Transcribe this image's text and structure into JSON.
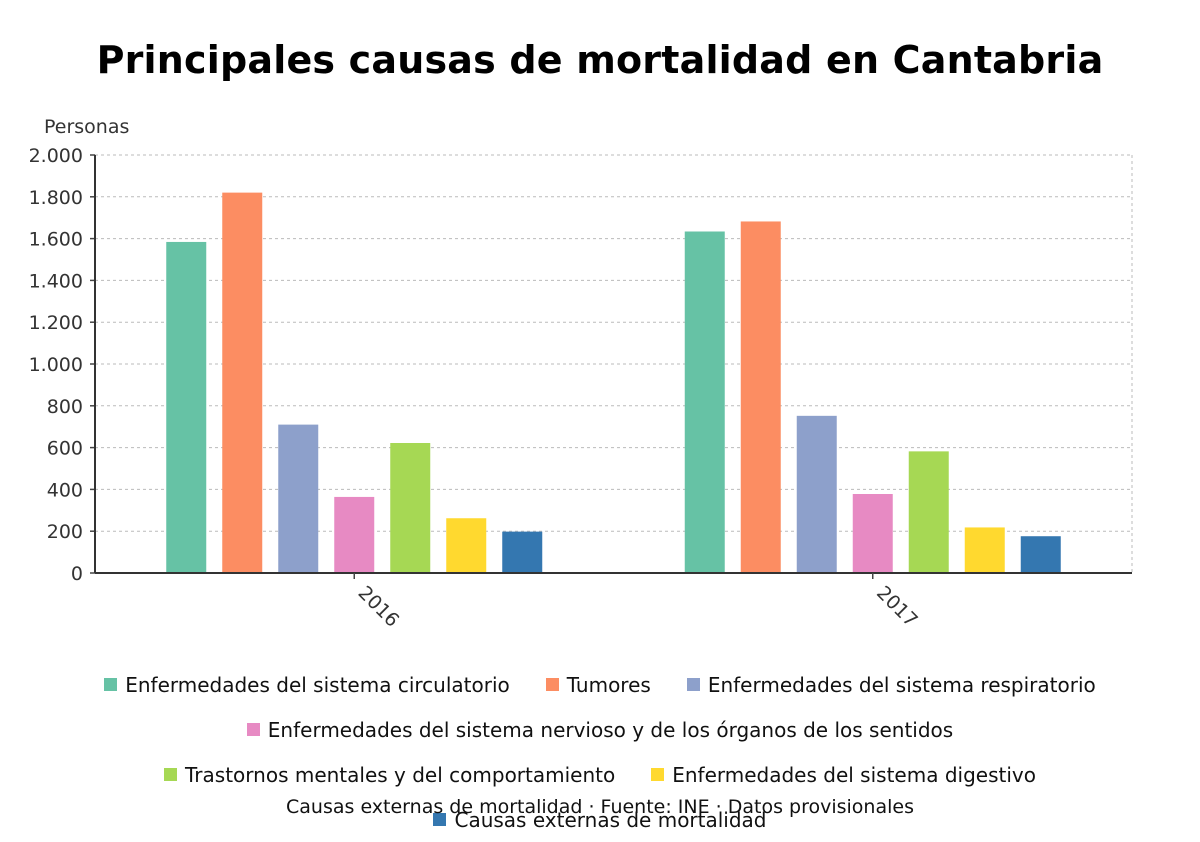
{
  "chart_data": {
    "type": "bar",
    "title": "Principales causas de mortalidad en Cantabria",
    "ylabel": "Personas",
    "xlabel": "",
    "ylim": [
      0,
      2000
    ],
    "yticks": [
      0,
      200,
      400,
      600,
      800,
      1000,
      1200,
      1400,
      1600,
      1800,
      2000
    ],
    "ytick_labels": [
      "0",
      "200",
      "400",
      "600",
      "800",
      "1.000",
      "1.200",
      "1.400",
      "1.600",
      "1.800",
      "2.000"
    ],
    "categories": [
      "2016",
      "2017"
    ],
    "series": [
      {
        "name": "Enfermedades del sistema circulatorio",
        "color": "#66c2a5",
        "values": [
          1584,
          1634
        ]
      },
      {
        "name": "Tumores",
        "color": "#fc8d62",
        "values": [
          1820,
          1682
        ]
      },
      {
        "name": "Enfermedades del sistema respiratorio",
        "color": "#8da0cb",
        "values": [
          710,
          752
        ]
      },
      {
        "name": "Enfermedades del sistema nervioso y de los órganos de los sentidos",
        "color": "#e78ac3",
        "values": [
          364,
          378
        ]
      },
      {
        "name": "Trastornos mentales y del comportamiento",
        "color": "#a6d854",
        "values": [
          622,
          582
        ]
      },
      {
        "name": "Enfermedades del sistema digestivo",
        "color": "#ffd92f",
        "values": [
          262,
          218
        ]
      },
      {
        "name": "Causas externas de mortalidad",
        "color": "#3477b0",
        "values": [
          198,
          176
        ]
      }
    ],
    "grid": true,
    "legend_position": "bottom"
  },
  "footer_text": "Causas externas de mortalidad · Fuente: INE · Datos provisionales"
}
